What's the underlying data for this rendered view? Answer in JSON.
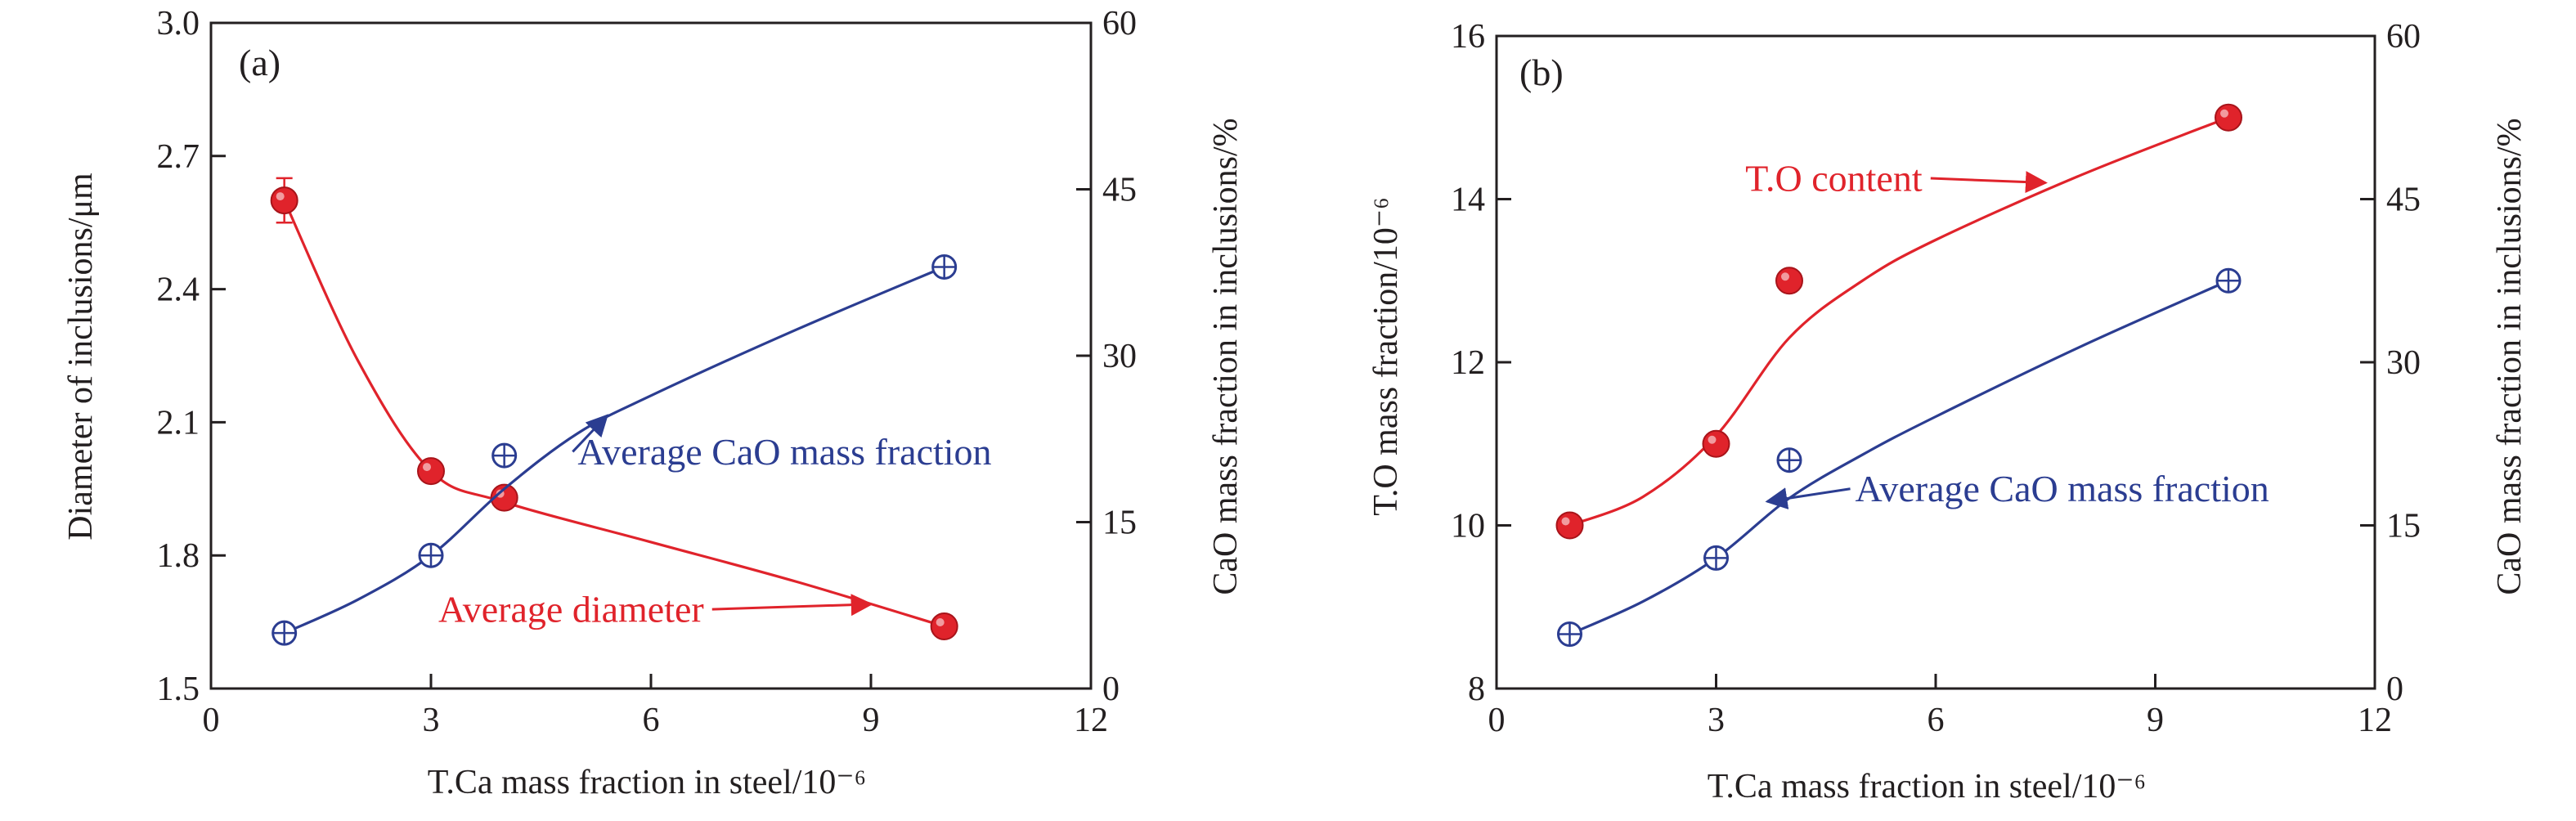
{
  "colors": {
    "red": "#e0232b",
    "blue": "#2b3d91",
    "axis": "#231f20"
  },
  "chart_data": [
    {
      "type": "scatter",
      "panel_label": "(a)",
      "xlabel": "T.Ca mass fraction in steel/10⁻⁶",
      "ylabel_left": "Diameter of inclusions/μm",
      "ylabel_right": "CaO mass fraction in inclusions/%",
      "xlim": [
        0,
        12
      ],
      "xticks": [
        0,
        3,
        6,
        9,
        12
      ],
      "ylim_left": [
        1.5,
        3.0
      ],
      "yticks_left": [
        "1.5",
        "1.8",
        "2.1",
        "2.4",
        "2.7",
        "3.0"
      ],
      "ylim_right": [
        0,
        60
      ],
      "yticks_right": [
        "0",
        "15",
        "30",
        "45",
        "60"
      ],
      "grid": false,
      "series": [
        {
          "name": "Average diameter",
          "axis": "left",
          "color": "#e0232b",
          "marker": "filled-circle",
          "x": [
            1,
            3,
            4,
            10
          ],
          "y": [
            2.6,
            1.99,
            1.93,
            1.64
          ],
          "yerr": [
            0.05,
            0.02,
            0.015,
            0.01
          ],
          "curve": [
            [
              1,
              2.6
            ],
            [
              2,
              2.24
            ],
            [
              3,
              1.99
            ],
            [
              4,
              1.92
            ],
            [
              6,
              1.83
            ],
            [
              8,
              1.74
            ],
            [
              10,
              1.64
            ]
          ]
        },
        {
          "name": "Average CaO mass fraction",
          "axis": "right",
          "color": "#2b3d91",
          "marker": "open-circle-cross",
          "x": [
            1,
            3,
            4,
            10
          ],
          "y": [
            5,
            12,
            21,
            38
          ],
          "curve": [
            [
              1,
              5
            ],
            [
              2,
              8
            ],
            [
              3,
              12
            ],
            [
              4,
              18
            ],
            [
              5,
              23
            ],
            [
              6,
              26.4
            ],
            [
              8,
              32.4
            ],
            [
              10,
              38
            ]
          ]
        }
      ],
      "annotations": [
        {
          "text": "Average CaO mass fraction",
          "series": 1,
          "arrow_to": [
            5.4,
            24.6
          ],
          "label_at": [
            5.0,
            20.2
          ],
          "anchor": "start"
        },
        {
          "text": "Average diameter",
          "series": 0,
          "arrow_to": [
            9.0,
            1.69
          ],
          "label_at": [
            3.1,
            1.65
          ],
          "anchor": "start"
        }
      ]
    },
    {
      "type": "scatter",
      "panel_label": "(b)",
      "xlabel": "T.Ca mass fraction in steel/10⁻⁶",
      "ylabel_left": "T.O mass fraction/10⁻⁶",
      "ylabel_right": "CaO mass fraction in inclusions/%",
      "xlim": [
        0,
        12
      ],
      "xticks": [
        0,
        3,
        6,
        9,
        12
      ],
      "ylim_left": [
        8,
        16
      ],
      "yticks_left": [
        "8",
        "10",
        "12",
        "14",
        "16"
      ],
      "ylim_right": [
        0,
        60
      ],
      "yticks_right": [
        "0",
        "15",
        "30",
        "45",
        "60"
      ],
      "grid": false,
      "series": [
        {
          "name": "T.O content",
          "axis": "left",
          "color": "#e0232b",
          "marker": "filled-circle",
          "x": [
            1,
            3,
            4,
            10
          ],
          "y": [
            10,
            11,
            13,
            15
          ],
          "curve": [
            [
              1,
              10
            ],
            [
              2,
              10.35
            ],
            [
              3,
              11.1
            ],
            [
              4,
              12.3
            ],
            [
              5,
              13.0
            ],
            [
              6,
              13.5
            ],
            [
              8,
              14.3
            ],
            [
              10,
              15
            ]
          ]
        },
        {
          "name": "Average CaO mass fraction",
          "axis": "right",
          "color": "#2b3d91",
          "marker": "open-circle-cross",
          "x": [
            1,
            3,
            4,
            10
          ],
          "y": [
            5,
            12,
            21,
            37.5
          ],
          "curve": [
            [
              1,
              5
            ],
            [
              2,
              8
            ],
            [
              3,
              12
            ],
            [
              4,
              17.5
            ],
            [
              5,
              21.5
            ],
            [
              6,
              25
            ],
            [
              8,
              31.5
            ],
            [
              10,
              37.5
            ]
          ]
        }
      ],
      "annotations": [
        {
          "text": "T.O content",
          "series": 0,
          "arrow_to": [
            7.5,
            14.2
          ],
          "label_at": [
            3.4,
            14.1
          ],
          "anchor": "start"
        },
        {
          "text": "Average CaO mass fraction",
          "series": 1,
          "arrow_to": [
            3.7,
            17.2
          ],
          "label_at": [
            4.9,
            17.2
          ],
          "anchor": "start"
        }
      ]
    }
  ]
}
